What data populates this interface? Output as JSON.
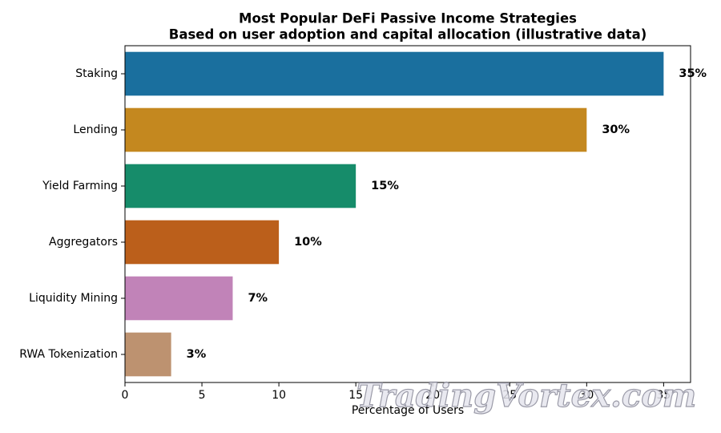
{
  "chart_data": {
    "type": "barh",
    "title": "Most Popular DeFi Passive Income Strategies",
    "subtitle": "Based on user adoption and capital allocation (illustrative data)",
    "categories": [
      "Staking",
      "Lending",
      "Yield Farming",
      "Aggregators",
      "Liquidity Mining",
      "RWA Tokenization"
    ],
    "values": [
      35,
      30,
      15,
      10,
      7,
      3
    ],
    "value_labels": [
      "35%",
      "30%",
      "15%",
      "10%",
      "7%",
      "3%"
    ],
    "colors": [
      "#1a6f9e",
      "#c4881f",
      "#168c6a",
      "#bb5f1b",
      "#c183b8",
      "#bd9270"
    ],
    "xlabel": "Percentage of Users",
    "xlim": [
      0,
      36.75
    ],
    "xticks": [
      0,
      5,
      10,
      15,
      20,
      25,
      30,
      35
    ],
    "grid": false,
    "watermark": "TradingVortex.com"
  }
}
